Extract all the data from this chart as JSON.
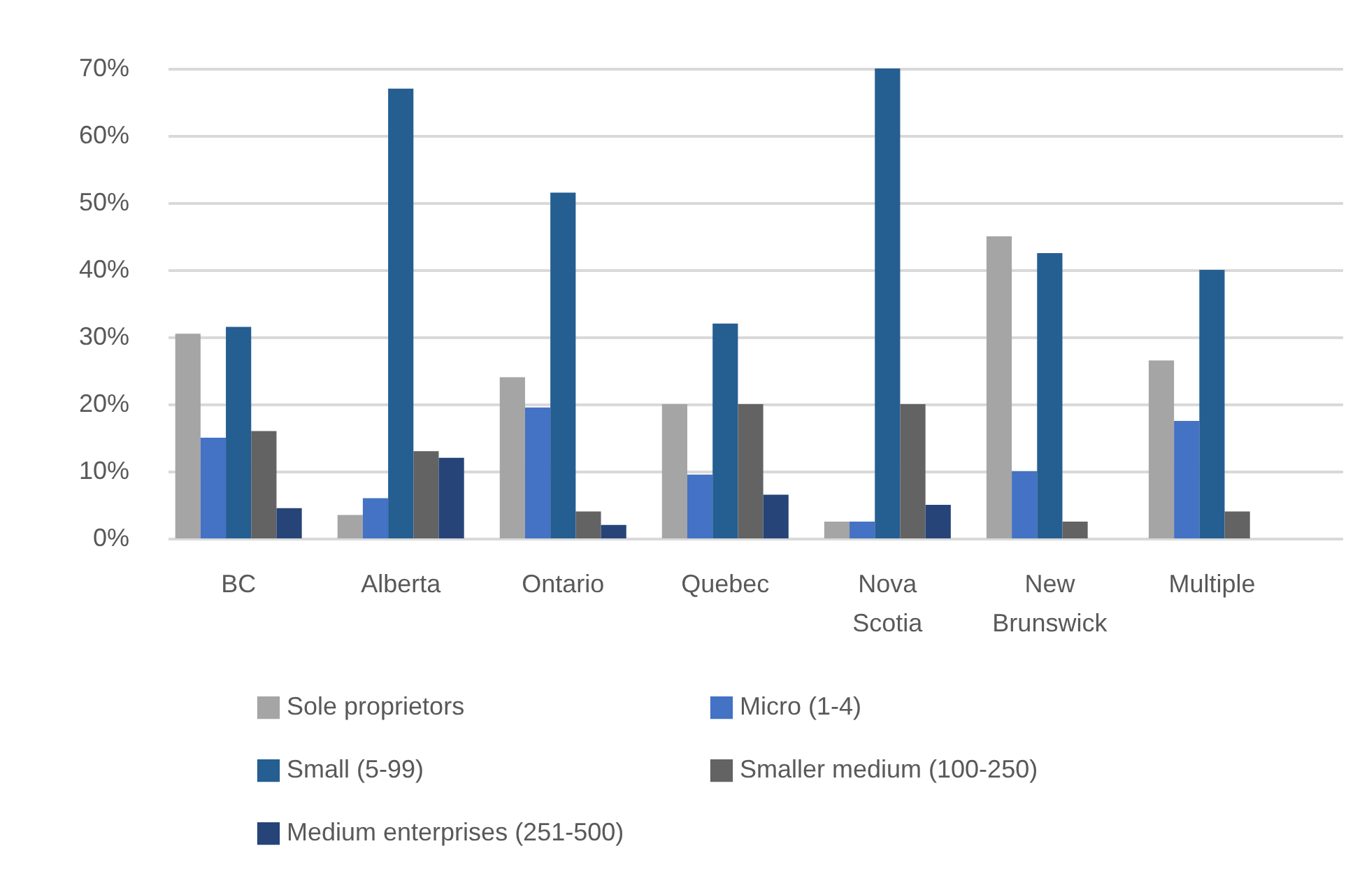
{
  "chart_data": {
    "type": "bar",
    "categories": [
      "BC",
      "Alberta",
      "Ontario",
      "Quebec",
      "Nova Scotia",
      "New Brunswick",
      "Multiple"
    ],
    "series": [
      {
        "name": "Sole proprietors",
        "color": "#a5a5a5",
        "values": [
          30.5,
          3.5,
          24,
          20,
          2.5,
          45,
          26.5
        ]
      },
      {
        "name": "Micro (1-4)",
        "color": "#4472c4",
        "values": [
          15,
          6,
          19.5,
          9.5,
          2.5,
          10,
          17.5
        ]
      },
      {
        "name": "Small (5-99)",
        "color": "#255e91",
        "values": [
          31.5,
          67,
          51.5,
          32,
          70,
          42.5,
          40
        ]
      },
      {
        "name": "Smaller medium (100-250)",
        "color": "#636363",
        "values": [
          16,
          13,
          4,
          20,
          20,
          2.5,
          4
        ]
      },
      {
        "name": "Medium enterprises (251-500)",
        "color": "#264478",
        "values": [
          4.5,
          12,
          2,
          6.5,
          5,
          0,
          0
        ]
      }
    ],
    "ylim": [
      0,
      70
    ],
    "yticks": [
      {
        "value": 0,
        "label": "0%"
      },
      {
        "value": 10,
        "label": "10%"
      },
      {
        "value": 20,
        "label": "20%"
      },
      {
        "value": 30,
        "label": "30%"
      },
      {
        "value": 40,
        "label": "40%"
      },
      {
        "value": 50,
        "label": "50%"
      },
      {
        "value": 60,
        "label": "60%"
      },
      {
        "value": 70,
        "label": "70%"
      }
    ],
    "grid": "y",
    "legend": "bottom"
  }
}
